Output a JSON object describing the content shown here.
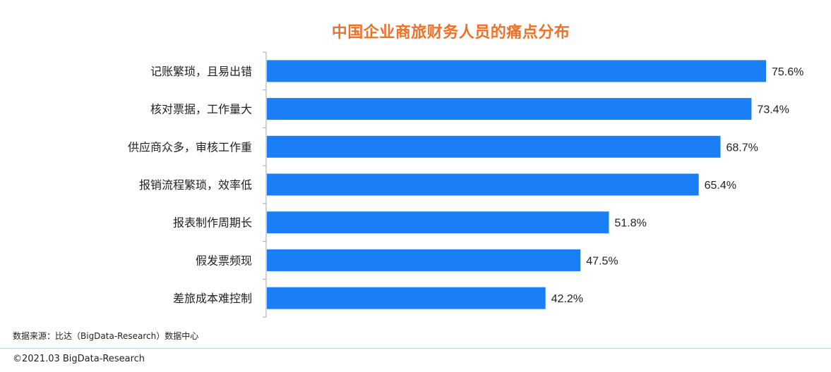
{
  "chart_data": {
    "type": "bar",
    "orientation": "horizontal",
    "title": "中国企业商旅财务人员的痛点分布",
    "categories": [
      "记账繁琐，且易出错",
      "核对票据，工作量大",
      "供应商众多，审核工作重",
      "报销流程繁琐，效率低",
      "报表制作周期长",
      "假发票频现",
      "差旅成本难控制"
    ],
    "values": [
      75.6,
      73.4,
      68.7,
      65.4,
      51.8,
      47.5,
      42.2
    ],
    "value_labels": [
      "75.6%",
      "73.4%",
      "68.7%",
      "65.4%",
      "51.8%",
      "47.5%",
      "42.2%"
    ],
    "unit": "%",
    "xlim": [
      0,
      75.6
    ],
    "grid": false,
    "legend": "none",
    "bar_color": "#1a7ef7",
    "title_color": "#f07126"
  },
  "source_note": "数据来源：比达（BigData-Research）数据中心",
  "copyright": "©2021.03 BigData-Research"
}
